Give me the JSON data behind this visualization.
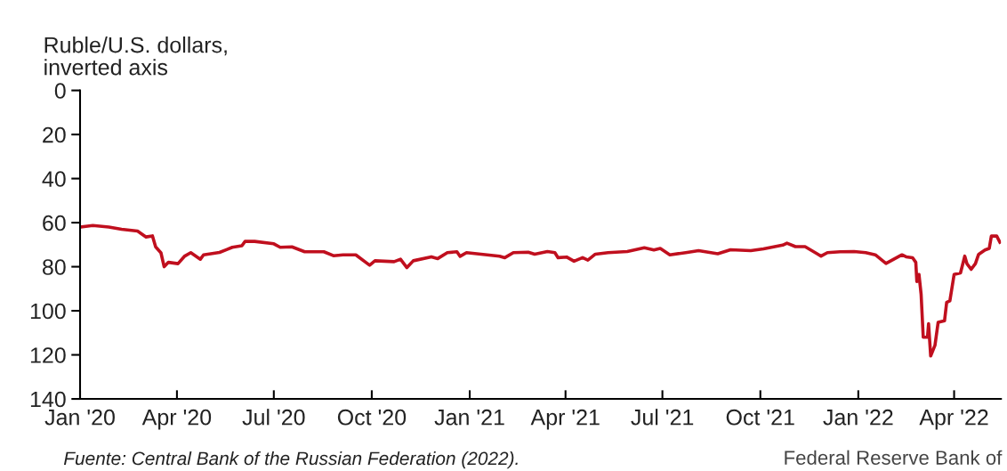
{
  "chart_data": {
    "type": "line",
    "ylabel": "Ruble/U.S. dollars,\ninverted axis",
    "annotations": [
      "Fuente: Central Bank of the Russian Federation (2022).",
      "Federal Reserve Bank of"
    ],
    "x": [
      "2020-01-01",
      "2020-01-13",
      "2020-01-28",
      "2020-02-09",
      "2020-02-24",
      "2020-03-03",
      "2020-03-09",
      "2020-03-12",
      "2020-03-17",
      "2020-03-20",
      "2020-03-24",
      "2020-04-02",
      "2020-04-08",
      "2020-04-14",
      "2020-04-23",
      "2020-04-26",
      "2020-05-11",
      "2020-05-23",
      "2020-06-01",
      "2020-06-04",
      "2020-06-13",
      "2020-07-01",
      "2020-07-07",
      "2020-07-18",
      "2020-07-30",
      "2020-08-17",
      "2020-08-26",
      "2020-09-04",
      "2020-09-16",
      "2020-09-29",
      "2020-10-04",
      "2020-10-22",
      "2020-10-28",
      "2020-11-03",
      "2020-11-09",
      "2020-11-26",
      "2020-12-02",
      "2020-12-11",
      "2020-12-20",
      "2020-12-23",
      "2020-12-29",
      "2021-01-29",
      "2021-02-03",
      "2021-02-11",
      "2021-02-25",
      "2021-03-03",
      "2021-03-15",
      "2021-03-22",
      "2021-03-25",
      "2021-04-02",
      "2021-04-09",
      "2021-04-17",
      "2021-04-22",
      "2021-04-29",
      "2021-05-11",
      "2021-05-29",
      "2021-06-14",
      "2021-06-23",
      "2021-06-29",
      "2021-07-08",
      "2021-07-23",
      "2021-08-04",
      "2021-08-22",
      "2021-09-03",
      "2021-09-22",
      "2021-10-04",
      "2021-10-22",
      "2021-10-26",
      "2021-11-03",
      "2021-11-12",
      "2021-11-24",
      "2021-11-27",
      "2021-12-03",
      "2021-12-15",
      "2021-12-28",
      "2022-01-08",
      "2022-01-17",
      "2022-01-27",
      "2022-02-11",
      "2022-02-15",
      "2022-02-21",
      "2022-02-24",
      "2022-02-25",
      "2022-02-27",
      "2022-03-01",
      "2022-03-03",
      "2022-03-07",
      "2022-03-08",
      "2022-03-10",
      "2022-03-14",
      "2022-03-17",
      "2022-03-23",
      "2022-03-25",
      "2022-03-28",
      "2022-04-01",
      "2022-04-07",
      "2022-04-11",
      "2022-04-13",
      "2022-04-17",
      "2022-04-21",
      "2022-04-24",
      "2022-04-30",
      "2022-05-04",
      "2022-05-06",
      "2022-05-11",
      "2022-05-14"
    ],
    "series": [
      {
        "color": "#c00f1e",
        "values": [
          62,
          61.3,
          62,
          63,
          63.8,
          66.5,
          66,
          71,
          73.7,
          80,
          78,
          78.6,
          75.3,
          73.6,
          76.6,
          74.6,
          73.5,
          71.2,
          70.5,
          68.5,
          68.5,
          69.6,
          71.2,
          71,
          73.2,
          73.2,
          75,
          74.6,
          74.6,
          79.3,
          77.3,
          77.7,
          76.6,
          80.4,
          77.3,
          75.5,
          76.3,
          73.6,
          73.2,
          75.3,
          73.6,
          75.2,
          75.9,
          73.6,
          73.4,
          74.3,
          73.1,
          73.6,
          75.9,
          75.6,
          77.5,
          75.9,
          77,
          74.3,
          73.6,
          73.1,
          71.4,
          72.4,
          71.7,
          74.6,
          73.6,
          72.7,
          74.1,
          72.3,
          72.7,
          71.9,
          70.2,
          69.3,
          70.9,
          70.9,
          74.3,
          75.2,
          73.6,
          73.2,
          73.1,
          73.6,
          74.6,
          78.5,
          74.6,
          75.5,
          75.9,
          78,
          86.7,
          83.5,
          92.5,
          112,
          112,
          105.9,
          120.5,
          115.7,
          105.2,
          104.5,
          96.2,
          95.5,
          83.5,
          82.8,
          75.2,
          78.6,
          81.2,
          78.6,
          74.4,
          72.4,
          71.7,
          66.1,
          66.1,
          68.9
        ]
      }
    ],
    "xlim": [
      "2020-01-01",
      "2022-05-15"
    ],
    "xticks": [
      {
        "value": "2020-01-01",
        "label": "Jan '20"
      },
      {
        "value": "2020-04-01",
        "label": "Apr '20"
      },
      {
        "value": "2020-07-01",
        "label": "Jul '20"
      },
      {
        "value": "2020-10-01",
        "label": "Oct '20"
      },
      {
        "value": "2021-01-01",
        "label": "Jan '21"
      },
      {
        "value": "2021-04-01",
        "label": "Apr '21"
      },
      {
        "value": "2021-07-01",
        "label": "Jul '21"
      },
      {
        "value": "2021-10-01",
        "label": "Oct '21"
      },
      {
        "value": "2022-01-01",
        "label": "Jan '22"
      },
      {
        "value": "2022-04-01",
        "label": "Apr '22"
      }
    ],
    "ylim": [
      140,
      0
    ],
    "yticks": [
      0,
      20,
      40,
      60,
      80,
      100,
      120,
      140
    ],
    "grid": false
  }
}
